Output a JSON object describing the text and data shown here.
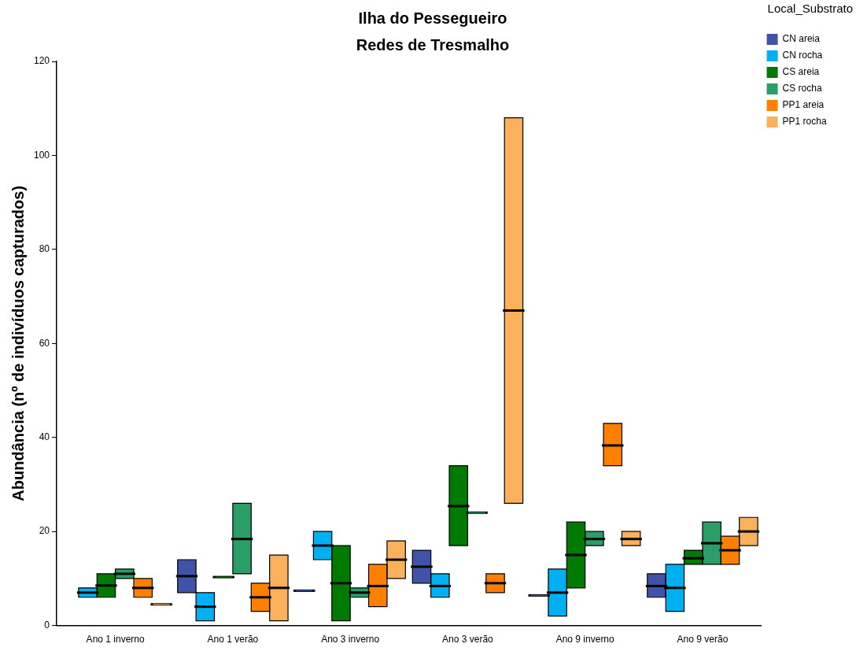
{
  "chart_data": {
    "type": "box",
    "title": "Ilha do Pessegueiro",
    "subtitle": "Redes de Tresmalho",
    "ylabel": "Abundância (nº de indivíduos capturados)",
    "legend_title": "Local_Substrato",
    "legend": "top right",
    "grid": false,
    "categories": [
      "Ano 1 inverno",
      "Ano 1 verão",
      "Ano 3 inverno",
      "Ano 3 verão",
      "Ano 9 inverno",
      "Ano 9 verão"
    ],
    "ylim": [
      0,
      120
    ],
    "yticks": [
      0,
      20,
      40,
      60,
      80,
      100,
      120
    ],
    "series": [
      {
        "name": "CN areia",
        "color": "#3f54a8",
        "boxes": [
          null,
          {
            "low": 7,
            "q1": 7,
            "median": 10.5,
            "q3": 14,
            "high": 14
          },
          {
            "low": 7.4,
            "q1": 7.4,
            "median": 7.4,
            "q3": 7.4,
            "high": 7.4
          },
          {
            "low": 9,
            "q1": 9,
            "median": 12.5,
            "q3": 16,
            "high": 16
          },
          {
            "low": 6.4,
            "q1": 6.4,
            "median": 6.4,
            "q3": 6.4,
            "high": 6.4
          },
          {
            "low": 6,
            "q1": 6,
            "median": 8.4,
            "q3": 11,
            "high": 11
          }
        ]
      },
      {
        "name": "CN rocha",
        "color": "#00b0f0",
        "boxes": [
          {
            "low": 6,
            "q1": 6,
            "median": 7,
            "q3": 8,
            "high": 8
          },
          {
            "low": 1,
            "q1": 1,
            "median": 4,
            "q3": 7,
            "high": 7
          },
          {
            "low": 14,
            "q1": 14,
            "median": 17,
            "q3": 20,
            "high": 20
          },
          {
            "low": 6,
            "q1": 6,
            "median": 8.4,
            "q3": 11,
            "high": 11
          },
          {
            "low": 2,
            "q1": 2,
            "median": 7,
            "q3": 12,
            "high": 12
          },
          {
            "low": 3,
            "q1": 3,
            "median": 8,
            "q3": 13,
            "high": 13
          }
        ]
      },
      {
        "name": "CS areia",
        "color": "#007a00",
        "boxes": [
          {
            "low": 6,
            "q1": 6,
            "median": 8.5,
            "q3": 11,
            "high": 11
          },
          {
            "low": 10.3,
            "q1": 10.3,
            "median": 10.3,
            "q3": 10.3,
            "high": 10.3
          },
          {
            "low": 1,
            "q1": 1,
            "median": 9,
            "q3": 17,
            "high": 17
          },
          {
            "low": 17,
            "q1": 17,
            "median": 25.4,
            "q3": 34,
            "high": 34
          },
          {
            "low": 8,
            "q1": 8,
            "median": 15,
            "q3": 22,
            "high": 22
          },
          {
            "low": 13,
            "q1": 13,
            "median": 14.3,
            "q3": 16,
            "high": 16
          }
        ]
      },
      {
        "name": "CS rocha",
        "color": "#2a9e66",
        "boxes": [
          {
            "low": 10,
            "q1": 10,
            "median": 11,
            "q3": 12,
            "high": 12
          },
          {
            "low": 11,
            "q1": 11,
            "median": 18.4,
            "q3": 26,
            "high": 26
          },
          {
            "low": 6,
            "q1": 6,
            "median": 7,
            "q3": 8,
            "high": 8
          },
          {
            "low": 24,
            "q1": 24,
            "median": 24,
            "q3": 24,
            "high": 24
          },
          {
            "low": 17,
            "q1": 17,
            "median": 18.4,
            "q3": 20,
            "high": 20
          },
          {
            "low": 13,
            "q1": 13,
            "median": 17.5,
            "q3": 22,
            "high": 22
          }
        ]
      },
      {
        "name": "PP1 areia",
        "color": "#ff8000",
        "boxes": [
          {
            "low": 6,
            "q1": 6,
            "median": 8,
            "q3": 10,
            "high": 10
          },
          {
            "low": 3,
            "q1": 3,
            "median": 6,
            "q3": 9,
            "high": 9
          },
          {
            "low": 4,
            "q1": 4,
            "median": 8.4,
            "q3": 13,
            "high": 13
          },
          {
            "low": 7,
            "q1": 7,
            "median": 9,
            "q3": 11,
            "high": 11
          },
          {
            "low": 34,
            "q1": 34,
            "median": 38.3,
            "q3": 43,
            "high": 43
          },
          {
            "low": 13,
            "q1": 13,
            "median": 16,
            "q3": 19,
            "high": 19
          }
        ]
      },
      {
        "name": "PP1 rocha",
        "color": "#fbb05c",
        "boxes": [
          {
            "low": 4.5,
            "q1": 4.5,
            "median": 4.5,
            "q3": 4.5,
            "high": 4.5
          },
          {
            "low": 1,
            "q1": 1,
            "median": 8,
            "q3": 15,
            "high": 15
          },
          {
            "low": 10,
            "q1": 10,
            "median": 14,
            "q3": 18,
            "high": 18
          },
          {
            "low": 26,
            "q1": 26,
            "median": 67,
            "q3": 108,
            "high": 108
          },
          {
            "low": 17,
            "q1": 17,
            "median": 18.4,
            "q3": 20,
            "high": 20
          },
          {
            "low": 17,
            "q1": 17,
            "median": 20,
            "q3": 23,
            "high": 23
          }
        ]
      }
    ]
  }
}
